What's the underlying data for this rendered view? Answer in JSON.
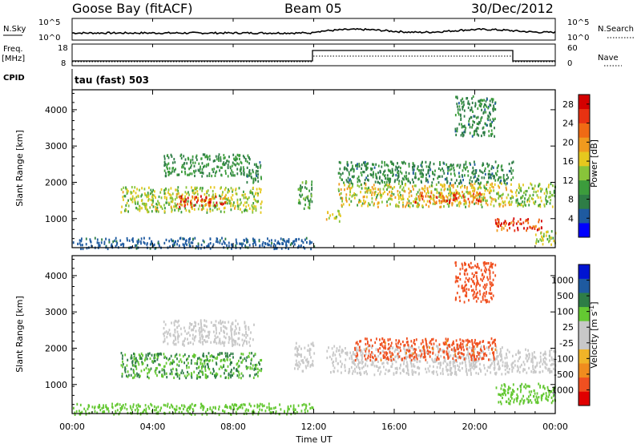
{
  "header": {
    "station": "Goose Bay (fitACF)",
    "beam": "Beam 05",
    "date": "30/Dec/2012"
  },
  "panels": {
    "nsky": {
      "label": "N.Sky",
      "tick_high": "10^5",
      "tick_low": "10^0",
      "right_label": "N.Search",
      "right_tick_high": "10^5",
      "right_tick_low": "10^0"
    },
    "freq": {
      "label": "Freq.",
      "unit": "[MHz]",
      "tick_high": "18",
      "tick_low": "8",
      "right_label": "Nave",
      "right_tick_high": "60",
      "right_tick_low": "0"
    },
    "cpid": {
      "label": "CPID",
      "value": "tau (fast) 503"
    }
  },
  "colors": {
    "power_scale": [
      "#0000ff",
      "#1e5aa0",
      "#2e7d46",
      "#3c9c3c",
      "#88c43a",
      "#e6c81e",
      "#f09a1e",
      "#f06a14",
      "#e83212",
      "#d40000"
    ],
    "velocity_scale": [
      "#e00000",
      "#f05020",
      "#f08c1e",
      "#f0b428",
      "#c8c8c8",
      "#c8c8c8",
      "#64c832",
      "#2e7d46",
      "#1e5aa0",
      "#0014d2"
    ]
  },
  "chart_data": [
    {
      "type": "heatmap",
      "title": "",
      "xlabel": "Time UT",
      "ylabel": "Slant Range [km]",
      "xlim": [
        0,
        24
      ],
      "ylim": [
        200,
        4550
      ],
      "x_ticks": [
        "00:00",
        "04:00",
        "08:00",
        "12:00",
        "16:00",
        "20:00",
        "00:00"
      ],
      "y_ticks": [
        "1000",
        "2000",
        "3000",
        "4000"
      ],
      "colorbar": {
        "label": "Power [dB]",
        "ticks": [
          "4",
          "8",
          "12",
          "16",
          "20",
          "24",
          "28"
        ],
        "range": [
          0,
          30
        ]
      },
      "regions": [
        {
          "t": [
            2.4,
            9.4
          ],
          "r": [
            1200,
            1900
          ],
          "value": 14
        },
        {
          "t": [
            5.2,
            7.6
          ],
          "r": [
            1350,
            1650
          ],
          "value": 24
        },
        {
          "t": [
            4.5,
            8.8
          ],
          "r": [
            2200,
            2800
          ],
          "value": 9
        },
        {
          "t": [
            8.6,
            9.4
          ],
          "r": [
            2000,
            2600
          ],
          "value": 8
        },
        {
          "t": [
            11.2,
            11.9
          ],
          "r": [
            1300,
            2100
          ],
          "value": 10
        },
        {
          "t": [
            12.6,
            13.3
          ],
          "r": [
            950,
            1250
          ],
          "value": 16
        },
        {
          "t": [
            13.2,
            21.9
          ],
          "r": [
            1350,
            2000
          ],
          "value": 16
        },
        {
          "t": [
            17.0,
            20.5
          ],
          "r": [
            1450,
            1750
          ],
          "value": 22
        },
        {
          "t": [
            13.2,
            21.9
          ],
          "r": [
            2000,
            2600
          ],
          "value": 8
        },
        {
          "t": [
            19.0,
            21.0
          ],
          "r": [
            3300,
            4400
          ],
          "value": 8
        },
        {
          "t": [
            22.0,
            24.0
          ],
          "r": [
            1350,
            2000
          ],
          "value": 13
        },
        {
          "t": [
            21.0,
            23.3
          ],
          "r": [
            700,
            1050
          ],
          "value": 27
        },
        {
          "t": [
            23.0,
            24.0
          ],
          "r": [
            300,
            700
          ],
          "value": 14
        },
        {
          "t": [
            0.0,
            12.0
          ],
          "r": [
            200,
            500
          ],
          "value": 5
        }
      ]
    },
    {
      "type": "heatmap",
      "title": "",
      "xlabel": "Time UT",
      "ylabel": "Slant Range [km]",
      "xlim": [
        0,
        24
      ],
      "ylim": [
        200,
        4550
      ],
      "x_ticks": [
        "00:00",
        "04:00",
        "08:00",
        "12:00",
        "16:00",
        "20:00",
        "00:00"
      ],
      "y_ticks": [
        "1000",
        "2000",
        "3000",
        "4000"
      ],
      "colorbar": {
        "label": "Velocity [m s^-1]",
        "ticks": [
          "1000",
          "500",
          "100",
          "25",
          "-25",
          "-100",
          "-500",
          "-1000"
        ]
      },
      "regions": [
        {
          "t": [
            2.4,
            9.4
          ],
          "r": [
            1200,
            1900
          ],
          "value": 300
        },
        {
          "t": [
            4.5,
            9.0
          ],
          "r": [
            2100,
            2800
          ],
          "value": 0
        },
        {
          "t": [
            11.0,
            12.0
          ],
          "r": [
            1400,
            2200
          ],
          "value": 0
        },
        {
          "t": [
            12.6,
            21.5
          ],
          "r": [
            1300,
            2100
          ],
          "value": 0
        },
        {
          "t": [
            14.0,
            21.0
          ],
          "r": [
            1700,
            2300
          ],
          "value": -200
        },
        {
          "t": [
            19.0,
            21.0
          ],
          "r": [
            3300,
            4400
          ],
          "value": -300
        },
        {
          "t": [
            21.5,
            24.0
          ],
          "r": [
            1350,
            2000
          ],
          "value": 0
        },
        {
          "t": [
            21.0,
            24.0
          ],
          "r": [
            500,
            1050
          ],
          "value": 80
        },
        {
          "t": [
            0.0,
            12.0
          ],
          "r": [
            200,
            500
          ],
          "value": 50
        }
      ]
    }
  ]
}
